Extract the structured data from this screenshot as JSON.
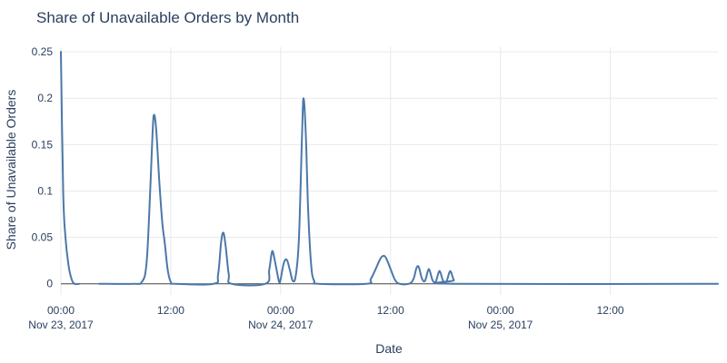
{
  "chart_data": {
    "type": "line",
    "title": "Share of Unavailable Orders by Month",
    "xlabel": "Date",
    "ylabel": "Share of Unavailable Orders",
    "x_range": [
      "2017-11-23 00:00",
      "2017-11-25 23:45"
    ],
    "ylim": [
      -0.012,
      0.255
    ],
    "grid": true,
    "line_color": "#4c78a8",
    "y_ticks": [
      {
        "value": 0,
        "label": "0"
      },
      {
        "value": 0.05,
        "label": "0.05"
      },
      {
        "value": 0.1,
        "label": "0.1"
      },
      {
        "value": 0.15,
        "label": "0.15"
      },
      {
        "value": 0.2,
        "label": "0.2"
      },
      {
        "value": 0.25,
        "label": "0.25"
      }
    ],
    "x_ticks": [
      {
        "value": "2017-11-23 00:00",
        "label": "00:00",
        "sublabel": "Nov 23, 2017"
      },
      {
        "value": "2017-11-23 12:00",
        "label": "12:00",
        "sublabel": ""
      },
      {
        "value": "2017-11-24 00:00",
        "label": "00:00",
        "sublabel": "Nov 24, 2017"
      },
      {
        "value": "2017-11-24 12:00",
        "label": "12:00",
        "sublabel": ""
      },
      {
        "value": "2017-11-25 00:00",
        "label": "00:00",
        "sublabel": "Nov 25, 2017"
      },
      {
        "value": "2017-11-25 12:00",
        "label": "12:00",
        "sublabel": ""
      }
    ],
    "series": [
      {
        "points": [
          [
            "2017-11-23 00:00",
            0.25
          ],
          [
            "2017-11-23 00:15",
            0.1
          ],
          [
            "2017-11-23 00:30",
            0.05
          ],
          [
            "2017-11-23 00:50",
            0.02
          ],
          [
            "2017-11-23 01:10",
            0.005
          ],
          [
            "2017-11-23 01:30",
            0.0
          ],
          [
            "2017-11-23 02:00",
            0.0
          ]
        ]
      },
      {
        "points": [
          [
            "2017-11-23 04:10",
            0.0
          ],
          [
            "2017-11-23 07:50",
            0.0
          ],
          [
            "2017-11-23 08:50",
            0.002
          ],
          [
            "2017-11-23 09:20",
            0.02
          ],
          [
            "2017-11-23 09:40",
            0.08
          ],
          [
            "2017-11-23 10:00",
            0.16
          ],
          [
            "2017-11-23 10:10",
            0.182
          ],
          [
            "2017-11-23 10:25",
            0.165
          ],
          [
            "2017-11-23 10:45",
            0.11
          ],
          [
            "2017-11-23 11:05",
            0.065
          ],
          [
            "2017-11-23 11:20",
            0.045
          ],
          [
            "2017-11-23 11:40",
            0.015
          ],
          [
            "2017-11-23 12:00",
            0.002
          ],
          [
            "2017-11-23 12:30",
            0.0
          ],
          [
            "2017-11-23 16:40",
            0.0
          ],
          [
            "2017-11-23 17:10",
            0.01
          ],
          [
            "2017-11-23 17:30",
            0.045
          ],
          [
            "2017-11-23 17:45",
            0.055
          ],
          [
            "2017-11-23 18:00",
            0.04
          ],
          [
            "2017-11-23 18:20",
            0.01
          ],
          [
            "2017-11-23 18:40",
            0.0
          ],
          [
            "2017-11-23 22:20",
            0.0
          ],
          [
            "2017-11-23 22:45",
            0.015
          ],
          [
            "2017-11-23 23:00",
            0.032
          ],
          [
            "2017-11-23 23:10",
            0.034
          ],
          [
            "2017-11-23 23:30",
            0.018
          ],
          [
            "2017-11-23 23:50",
            0.002
          ],
          [
            "2017-11-24 00:00",
            0.005
          ],
          [
            "2017-11-24 00:20",
            0.022
          ],
          [
            "2017-11-24 00:40",
            0.026
          ],
          [
            "2017-11-24 01:00",
            0.015
          ],
          [
            "2017-11-24 01:20",
            0.003
          ],
          [
            "2017-11-24 01:40",
            0.01
          ],
          [
            "2017-11-24 02:00",
            0.05
          ],
          [
            "2017-11-24 02:20",
            0.16
          ],
          [
            "2017-11-24 02:30",
            0.2
          ],
          [
            "2017-11-24 02:45",
            0.16
          ],
          [
            "2017-11-24 03:00",
            0.08
          ],
          [
            "2017-11-24 03:20",
            0.02
          ],
          [
            "2017-11-24 03:40",
            0.003
          ],
          [
            "2017-11-24 04:10",
            0.0
          ],
          [
            "2017-11-24 09:20",
            0.0
          ],
          [
            "2017-11-24 09:50",
            0.005
          ],
          [
            "2017-11-24 10:20",
            0.015
          ],
          [
            "2017-11-24 10:50",
            0.026
          ],
          [
            "2017-11-24 11:10",
            0.03
          ],
          [
            "2017-11-24 11:30",
            0.028
          ],
          [
            "2017-11-24 12:00",
            0.016
          ],
          [
            "2017-11-24 12:30",
            0.004
          ],
          [
            "2017-11-24 13:00",
            0.0
          ],
          [
            "2017-11-24 14:00",
            0.0
          ],
          [
            "2017-11-24 14:30",
            0.005
          ],
          [
            "2017-11-24 14:50",
            0.017
          ],
          [
            "2017-11-24 15:05",
            0.018
          ],
          [
            "2017-11-24 15:25",
            0.006
          ],
          [
            "2017-11-24 15:45",
            0.003
          ],
          [
            "2017-11-24 16:05",
            0.014
          ],
          [
            "2017-11-24 16:15",
            0.015
          ],
          [
            "2017-11-24 16:35",
            0.004
          ],
          [
            "2017-11-24 16:55",
            0.002
          ],
          [
            "2017-11-24 17:15",
            0.012
          ],
          [
            "2017-11-24 17:25",
            0.013
          ],
          [
            "2017-11-24 17:45",
            0.003
          ],
          [
            "2017-11-24 18:05",
            0.002
          ],
          [
            "2017-11-24 18:25",
            0.012
          ],
          [
            "2017-11-24 18:35",
            0.013
          ],
          [
            "2017-11-24 18:55",
            0.004
          ],
          [
            "2017-11-24 19:20",
            0.0
          ],
          [
            "2017-11-25 23:45",
            0.0
          ]
        ]
      }
    ]
  }
}
